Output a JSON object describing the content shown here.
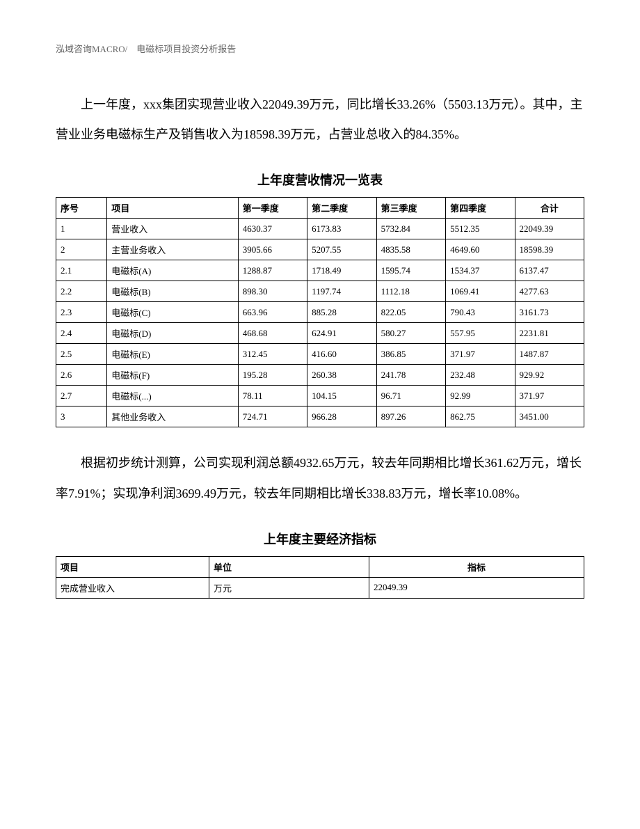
{
  "header": "泓域咨询MACRO/　电磁标项目投资分析报告",
  "paragraph1": "上一年度，xxx集团实现营业收入22049.39万元，同比增长33.26%（5503.13万元）。其中，主营业业务电磁标生产及销售收入为18598.39万元，占营业总收入的84.35%。",
  "table1": {
    "title": "上年度营收情况一览表",
    "headers": {
      "seq": "序号",
      "item": "项目",
      "q1": "第一季度",
      "q2": "第二季度",
      "q3": "第三季度",
      "q4": "第四季度",
      "total": "合计"
    },
    "rows": [
      {
        "seq": "1",
        "item": "营业收入",
        "q1": "4630.37",
        "q2": "6173.83",
        "q3": "5732.84",
        "q4": "5512.35",
        "total": "22049.39"
      },
      {
        "seq": "2",
        "item": "主营业务收入",
        "q1": "3905.66",
        "q2": "5207.55",
        "q3": "4835.58",
        "q4": "4649.60",
        "total": "18598.39"
      },
      {
        "seq": "2.1",
        "item": "电磁标(A)",
        "q1": "1288.87",
        "q2": "1718.49",
        "q3": "1595.74",
        "q4": "1534.37",
        "total": "6137.47"
      },
      {
        "seq": "2.2",
        "item": "电磁标(B)",
        "q1": "898.30",
        "q2": "1197.74",
        "q3": "1112.18",
        "q4": "1069.41",
        "total": "4277.63"
      },
      {
        "seq": "2.3",
        "item": "电磁标(C)",
        "q1": "663.96",
        "q2": "885.28",
        "q3": "822.05",
        "q4": "790.43",
        "total": "3161.73"
      },
      {
        "seq": "2.4",
        "item": "电磁标(D)",
        "q1": "468.68",
        "q2": "624.91",
        "q3": "580.27",
        "q4": "557.95",
        "total": "2231.81"
      },
      {
        "seq": "2.5",
        "item": "电磁标(E)",
        "q1": "312.45",
        "q2": "416.60",
        "q3": "386.85",
        "q4": "371.97",
        "total": "1487.87"
      },
      {
        "seq": "2.6",
        "item": "电磁标(F)",
        "q1": "195.28",
        "q2": "260.38",
        "q3": "241.78",
        "q4": "232.48",
        "total": "929.92"
      },
      {
        "seq": "2.7",
        "item": "电磁标(...)",
        "q1": "78.11",
        "q2": "104.15",
        "q3": "96.71",
        "q4": "92.99",
        "total": "371.97"
      },
      {
        "seq": "3",
        "item": "其他业务收入",
        "q1": "724.71",
        "q2": "966.28",
        "q3": "897.26",
        "q4": "862.75",
        "total": "3451.00"
      }
    ]
  },
  "paragraph2": "根据初步统计测算，公司实现利润总额4932.65万元，较去年同期相比增长361.62万元，增长率7.91%；实现净利润3699.49万元，较去年同期相比增长338.83万元，增长率10.08%。",
  "table2": {
    "title": "上年度主要经济指标",
    "headers": {
      "project": "项目",
      "unit": "单位",
      "indicator": "指标"
    },
    "rows": [
      {
        "project": "完成营业收入",
        "unit": "万元",
        "indicator": "22049.39"
      }
    ]
  }
}
